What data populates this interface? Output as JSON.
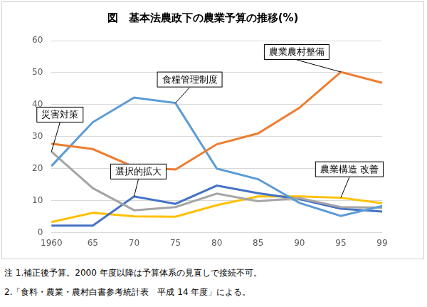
{
  "chart_data": {
    "type": "line",
    "title": "図　基本法農政下の農業予算の推移(%)",
    "categories": [
      "1960",
      "65",
      "70",
      "75",
      "80",
      "85",
      "90",
      "95",
      "99"
    ],
    "series": [
      {
        "name": "農業農村整備",
        "color": "#ed7d31",
        "values": [
          27.8,
          26.1,
          20.5,
          19.7,
          27.6,
          31.0,
          39.0,
          50.2,
          46.8
        ]
      },
      {
        "name": "食糧管理制度",
        "color": "#5b9bd5",
        "values": [
          20.8,
          34.5,
          42.2,
          40.5,
          20.0,
          16.7,
          9.3,
          5.2,
          8.3
        ]
      },
      {
        "name": "災害対策",
        "color": "#a5a5a5",
        "values": [
          25.3,
          13.9,
          7.0,
          8.0,
          12.2,
          9.8,
          10.8,
          8.0,
          7.8
        ]
      },
      {
        "name": "選択的拡大",
        "color": "#4472c4",
        "values": [
          2.2,
          2.2,
          11.3,
          9.0,
          14.7,
          12.3,
          10.5,
          7.5,
          6.6
        ]
      },
      {
        "name": "農業構造 改善",
        "color": "#ffc000",
        "values": [
          3.3,
          6.2,
          5.1,
          5.0,
          8.6,
          11.3,
          11.3,
          10.9,
          9.2
        ]
      }
    ],
    "ylim": [
      0,
      60
    ],
    "yticks": [
      0,
      10,
      20,
      30,
      40,
      50,
      60
    ],
    "grid": true,
    "marker": "none"
  },
  "notes": [
    "注 1.補正後予算。2000 年度以降は予算体系の見直しで接続不可。",
    "2.「食料・農業・農村白書参考統計表　平成 14 年度」による。"
  ]
}
